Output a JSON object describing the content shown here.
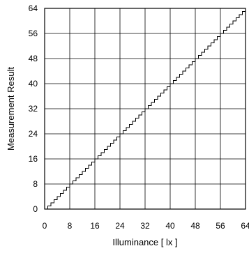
{
  "chart_data": {
    "type": "line",
    "title": "",
    "xlabel": "Illuminance [ lx ]",
    "ylabel": "Measurement Result",
    "xlim": [
      0,
      64
    ],
    "ylim": [
      0,
      64
    ],
    "x_ticks": [
      "0",
      "8",
      "16",
      "24",
      "32",
      "40",
      "48",
      "56",
      "64"
    ],
    "y_ticks": [
      "0",
      "8",
      "16",
      "24",
      "32",
      "40",
      "48",
      "56",
      "64"
    ],
    "grid": true,
    "legend": "none",
    "series": [
      {
        "style": "staircase",
        "x": [
          1,
          2,
          3,
          4,
          5,
          6,
          7,
          8,
          9,
          10,
          11,
          12,
          13,
          14,
          15,
          16,
          17,
          18,
          19,
          20,
          21,
          22,
          23,
          24,
          25,
          26,
          27,
          28,
          29,
          30,
          31,
          32,
          33,
          34,
          35,
          36,
          37,
          38,
          39,
          40,
          41,
          42,
          43,
          44,
          45,
          46,
          47,
          48,
          49,
          50,
          51,
          52,
          53,
          54,
          55,
          56,
          57,
          58,
          59,
          60,
          61,
          62,
          63,
          64
        ],
        "values": [
          1,
          2,
          3,
          4,
          5,
          6,
          7,
          8,
          9,
          10,
          11,
          12,
          13,
          14,
          15,
          16,
          17,
          18,
          19,
          20,
          21,
          22,
          23,
          24,
          25,
          26,
          27,
          28,
          29,
          30,
          31,
          32,
          33,
          34,
          35,
          36,
          37,
          38,
          39,
          40,
          41,
          42,
          43,
          44,
          45,
          46,
          47,
          48,
          49,
          50,
          51,
          52,
          53,
          54,
          55,
          56,
          57,
          58,
          59,
          60,
          61,
          62,
          63,
          64
        ]
      }
    ]
  }
}
